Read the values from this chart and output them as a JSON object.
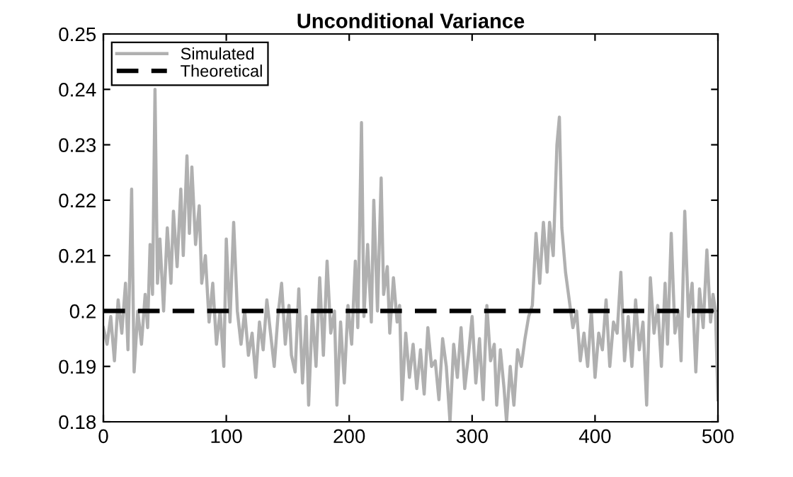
{
  "chart_data": {
    "type": "line",
    "title": "Unconditional Variance",
    "xlim": [
      0,
      500
    ],
    "xticks": [
      0,
      100,
      200,
      300,
      400,
      500
    ],
    "ylim": [
      0.18,
      0.25
    ],
    "yticks": [
      0.18,
      0.19,
      0.2,
      0.21,
      0.22,
      0.23,
      0.24,
      0.25
    ],
    "grid": false,
    "legend": "top left",
    "series": [
      {
        "name": "Simulated",
        "color": "#b0b0b0",
        "line_style": "solid",
        "x": [
          0,
          3,
          6,
          9,
          12,
          15,
          18,
          20,
          23,
          25,
          28,
          31,
          34,
          36,
          38,
          40,
          42,
          44,
          46,
          49,
          52,
          55,
          57,
          60,
          63,
          65,
          68,
          70,
          72,
          75,
          78,
          80,
          83,
          86,
          89,
          92,
          95,
          98,
          100,
          103,
          106,
          109,
          112,
          115,
          118,
          121,
          124,
          127,
          130,
          133,
          136,
          139,
          142,
          145,
          148,
          151,
          153,
          156,
          159,
          162,
          165,
          167,
          170,
          173,
          176,
          179,
          182,
          185,
          188,
          190,
          193,
          196,
          199,
          202,
          205,
          207,
          210,
          212,
          215,
          218,
          220,
          223,
          226,
          228,
          231,
          233,
          236,
          239,
          241,
          243,
          246,
          249,
          252,
          255,
          258,
          261,
          264,
          267,
          270,
          273,
          276,
          279,
          282,
          285,
          288,
          291,
          294,
          297,
          300,
          303,
          306,
          309,
          312,
          315,
          318,
          320,
          323,
          326,
          328,
          331,
          334,
          337,
          340,
          343,
          346,
          349,
          352,
          355,
          358,
          361,
          363,
          366,
          369,
          371,
          373,
          376,
          379,
          382,
          385,
          388,
          391,
          394,
          397,
          400,
          403,
          406,
          409,
          412,
          415,
          418,
          421,
          424,
          427,
          430,
          433,
          436,
          439,
          442,
          445,
          448,
          451,
          454,
          457,
          459,
          462,
          465,
          468,
          470,
          473,
          476,
          479,
          482,
          485,
          488,
          491,
          494,
          496,
          498,
          500
        ],
        "values": [
          0.197,
          0.194,
          0.199,
          0.191,
          0.202,
          0.196,
          0.205,
          0.193,
          0.222,
          0.189,
          0.2,
          0.194,
          0.203,
          0.197,
          0.212,
          0.203,
          0.24,
          0.205,
          0.213,
          0.2,
          0.215,
          0.205,
          0.218,
          0.208,
          0.222,
          0.21,
          0.228,
          0.214,
          0.226,
          0.212,
          0.219,
          0.205,
          0.21,
          0.198,
          0.205,
          0.194,
          0.2,
          0.19,
          0.213,
          0.198,
          0.216,
          0.2,
          0.194,
          0.2,
          0.192,
          0.196,
          0.188,
          0.198,
          0.193,
          0.202,
          0.196,
          0.19,
          0.199,
          0.205,
          0.194,
          0.201,
          0.192,
          0.189,
          0.204,
          0.187,
          0.199,
          0.183,
          0.2,
          0.19,
          0.206,
          0.192,
          0.209,
          0.196,
          0.2,
          0.183,
          0.198,
          0.187,
          0.201,
          0.194,
          0.209,
          0.197,
          0.234,
          0.199,
          0.212,
          0.198,
          0.22,
          0.2,
          0.224,
          0.203,
          0.208,
          0.196,
          0.206,
          0.198,
          0.201,
          0.184,
          0.196,
          0.188,
          0.194,
          0.186,
          0.193,
          0.185,
          0.197,
          0.19,
          0.191,
          0.184,
          0.195,
          0.19,
          0.18,
          0.194,
          0.188,
          0.197,
          0.186,
          0.192,
          0.199,
          0.187,
          0.195,
          0.184,
          0.201,
          0.191,
          0.194,
          0.183,
          0.193,
          0.186,
          0.18,
          0.19,
          0.183,
          0.193,
          0.19,
          0.195,
          0.199,
          0.201,
          0.214,
          0.205,
          0.216,
          0.207,
          0.216,
          0.21,
          0.23,
          0.235,
          0.215,
          0.207,
          0.202,
          0.197,
          0.2,
          0.191,
          0.196,
          0.19,
          0.2,
          0.188,
          0.196,
          0.193,
          0.202,
          0.19,
          0.198,
          0.196,
          0.207,
          0.191,
          0.199,
          0.19,
          0.202,
          0.193,
          0.198,
          0.183,
          0.206,
          0.196,
          0.201,
          0.19,
          0.205,
          0.194,
          0.214,
          0.196,
          0.2,
          0.191,
          0.218,
          0.199,
          0.205,
          0.189,
          0.204,
          0.197,
          0.211,
          0.198,
          0.203,
          0.2,
          0.184
        ]
      },
      {
        "name": "Theoretical",
        "color": "#000000",
        "line_style": "dashed",
        "x": [
          0,
          500
        ],
        "values": [
          0.2,
          0.2
        ]
      }
    ]
  }
}
